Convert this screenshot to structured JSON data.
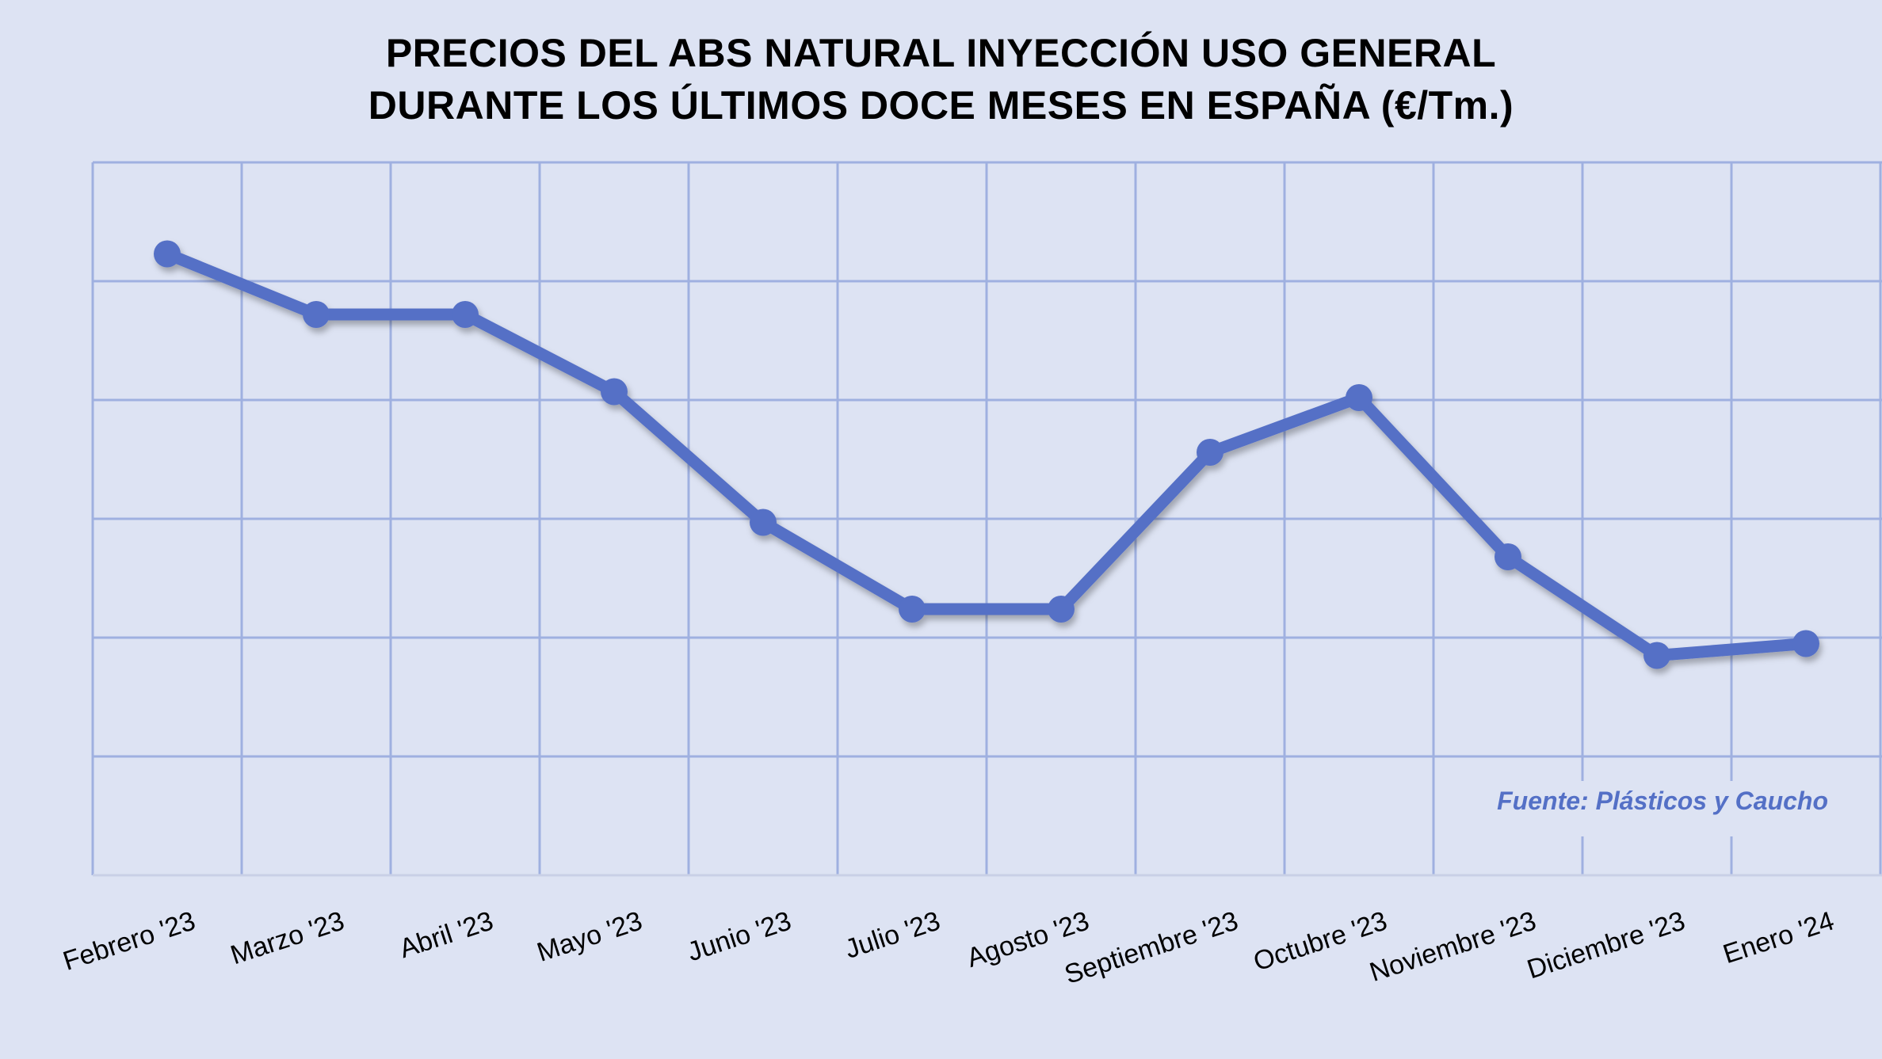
{
  "chart_data": {
    "type": "line",
    "title": [
      "PRECIOS DEL ABS NATURAL INYECCIÓN USO GENERAL",
      "DURANTE LOS ÚLTIMOS DOCE MESES EN ESPAÑA (€/Tm.)"
    ],
    "categories": [
      "Febrero '23",
      "Marzo '23",
      "Abril '23",
      "Mayo '23",
      "Junio '23",
      "Julio '23",
      "Agosto '23",
      "Septiembre '23",
      "Octubre '23",
      "Noviembre '23",
      "Diciembre '23",
      "Enero '24"
    ],
    "series": [
      {
        "values": [
          5.23,
          4.72,
          4.72,
          4.07,
          2.97,
          2.24,
          2.24,
          3.56,
          4.02,
          2.68,
          1.85,
          1.95
        ]
      }
    ],
    "ylim": [
      0,
      6
    ],
    "y_tick_labels_shown": false,
    "grid": true,
    "line_color": "#5470c6",
    "grid_color": "#9fb0e0",
    "background_color": "#dde3f3",
    "source_note": "Fuente: Plásticos y Caucho"
  }
}
